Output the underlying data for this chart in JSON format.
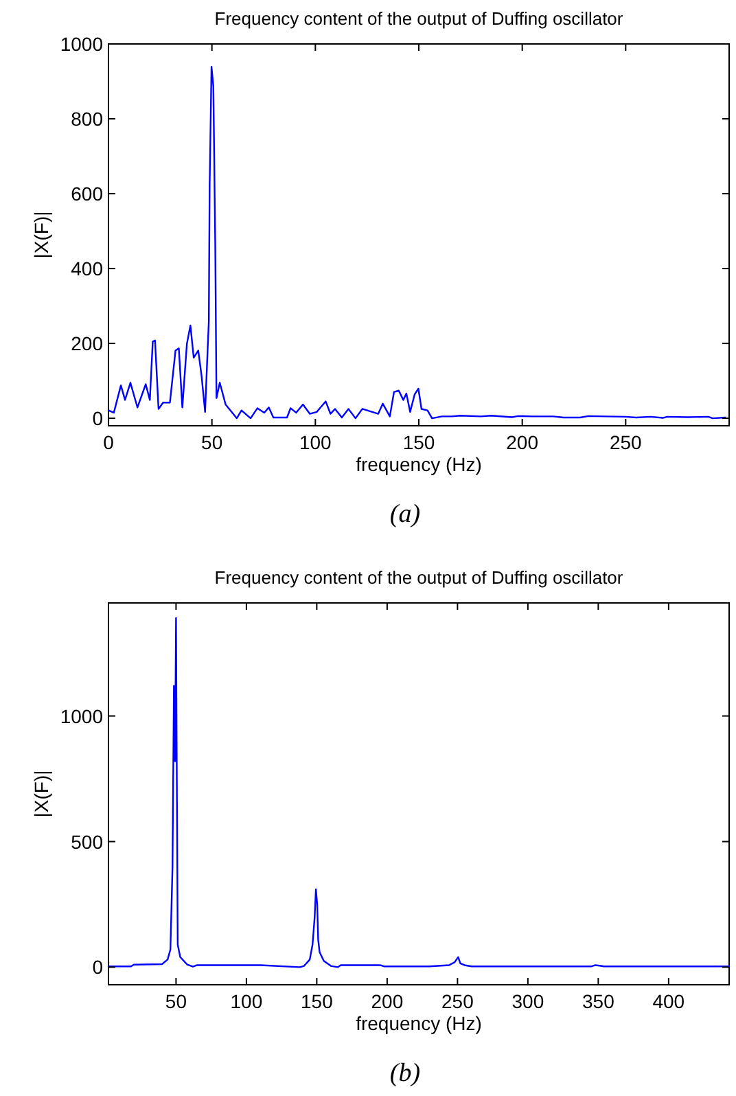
{
  "chart_data": [
    {
      "type": "line",
      "title": "Frequency content of the output of Duffing oscillator",
      "xlabel": "frequency (Hz)",
      "ylabel": "|X(F)|",
      "annotations": [
        "(a)"
      ],
      "xlim": [
        0,
        300
      ],
      "ylim": [
        -20,
        1000
      ],
      "xticks": [
        0,
        50,
        100,
        150,
        200,
        250
      ],
      "yticks": [
        0,
        200,
        400,
        600,
        800,
        1000
      ],
      "series": [
        {
          "color": "#0000ff",
          "x": [
            0,
            2.6,
            6,
            8,
            10.6,
            14,
            18,
            20,
            21.4,
            22.5,
            24.2,
            26.4,
            29.7,
            32.4,
            34,
            35.7,
            37.9,
            39.6,
            41.2,
            43.4,
            45,
            46.7,
            48.5,
            48.9,
            49.8,
            50.7,
            51.6,
            52.2,
            53.8,
            56.6,
            62,
            64.3,
            68.7,
            72,
            75.3,
            77.5,
            79.7,
            86.3,
            88,
            90.7,
            94,
            97.3,
            100.7,
            105,
            107.3,
            109.5,
            112.8,
            116,
            119.4,
            122.7,
            130.4,
            132.6,
            136,
            138,
            140.3,
            142.5,
            144,
            145.8,
            148,
            149.8,
            151.3,
            154.2,
            156.4,
            161.2,
            166,
            170,
            180,
            185,
            195,
            198,
            205,
            215,
            220,
            228,
            232,
            240,
            250,
            255,
            262,
            268,
            270,
            280,
            290,
            292,
            298
          ],
          "values": [
            21,
            15,
            88,
            49,
            95,
            29,
            91,
            49,
            205,
            208,
            25,
            42,
            42,
            181,
            187,
            29,
            199,
            248,
            162,
            181,
            113,
            17,
            260,
            623,
            939,
            887,
            469,
            54,
            95,
            37,
            0,
            21,
            0,
            27,
            15,
            29,
            2,
            2,
            27,
            15,
            37,
            12,
            17,
            45,
            12,
            25,
            2,
            25,
            0,
            25,
            12,
            39,
            5,
            70,
            74,
            49,
            66,
            17,
            64,
            79,
            25,
            21,
            0,
            5,
            5,
            7,
            5,
            7,
            3,
            6,
            5,
            5,
            2,
            2,
            6,
            5,
            4,
            2,
            4,
            1,
            4,
            3,
            4,
            0,
            2
          ]
        }
      ]
    },
    {
      "type": "line",
      "title": "Frequency content of the output of Duffing oscillator",
      "xlabel": "frequency (Hz)",
      "ylabel": "|X(F)|",
      "annotations": [
        "(b)"
      ],
      "xlim": [
        2,
        443
      ],
      "ylim": [
        -70,
        1450
      ],
      "xticks": [
        50,
        100,
        150,
        200,
        250,
        300,
        350,
        400
      ],
      "yticks": [
        0,
        500,
        1000
      ],
      "series": [
        {
          "color": "#0000ff",
          "x": [
            2,
            18,
            20,
            40,
            44,
            46,
            47.5,
            48.5,
            49.3,
            50,
            50.5,
            51.2,
            53,
            58,
            62,
            65,
            110,
            138,
            141,
            145,
            147,
            148.5,
            149.4,
            150.3,
            151,
            152,
            155,
            160,
            165,
            167,
            195,
            198,
            230,
            244,
            248,
            250.5,
            252,
            255,
            260,
            345,
            348,
            351,
            354,
            443
          ],
          "values": [
            3,
            3,
            10,
            12,
            30,
            70,
            400,
            1120,
            820,
            1390,
            820,
            90,
            40,
            10,
            2,
            8,
            8,
            0,
            5,
            30,
            90,
            200,
            310,
            250,
            110,
            60,
            25,
            5,
            0,
            8,
            8,
            3,
            3,
            8,
            20,
            40,
            15,
            8,
            3,
            3,
            8,
            6,
            3,
            3
          ]
        }
      ]
    }
  ]
}
